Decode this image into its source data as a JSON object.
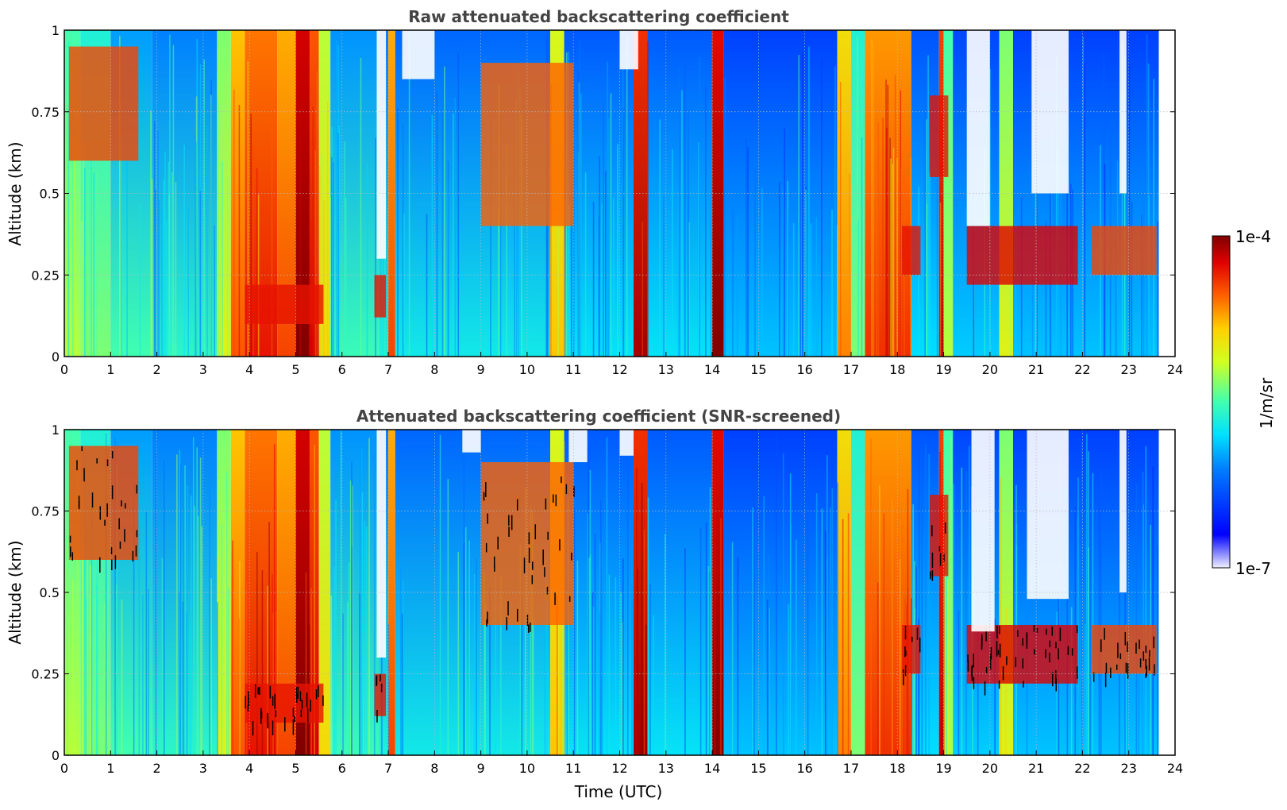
{
  "chart_data": [
    {
      "type": "heatmap",
      "title": "Raw attenuated backscattering coefficient",
      "xlabel": "",
      "ylabel": "Altitude (km)",
      "xlim": [
        0,
        24
      ],
      "ylim": [
        0,
        1
      ],
      "x_ticks": [
        "0",
        "1",
        "2",
        "3",
        "4",
        "5",
        "6",
        "7",
        "8",
        "9",
        "10",
        "11",
        "12",
        "13",
        "14",
        "15",
        "16",
        "17",
        "18",
        "19",
        "20",
        "21",
        "22",
        "23",
        "24"
      ],
      "y_ticks": [
        "0",
        "0.25",
        "0.5",
        "0.75",
        "1"
      ],
      "data_end_x": 23.65,
      "grid": true,
      "columns": [
        {
          "x0": 0.0,
          "x1": 0.35,
          "level": 0.55
        },
        {
          "x0": 0.35,
          "x1": 1.0,
          "level": 0.5
        },
        {
          "x0": 1.0,
          "x1": 1.9,
          "level": 0.45
        },
        {
          "x0": 1.9,
          "x1": 3.3,
          "level": 0.42
        },
        {
          "x0": 3.3,
          "x1": 3.6,
          "level": 0.6
        },
        {
          "x0": 3.6,
          "x1": 3.9,
          "level": 0.78
        },
        {
          "x0": 3.9,
          "x1": 4.6,
          "level": 0.85
        },
        {
          "x0": 4.6,
          "x1": 5.0,
          "level": 0.8
        },
        {
          "x0": 5.0,
          "x1": 5.3,
          "level": 0.98
        },
        {
          "x0": 5.3,
          "x1": 5.5,
          "level": 0.88
        },
        {
          "x0": 5.5,
          "x1": 5.75,
          "level": 0.65
        },
        {
          "x0": 5.75,
          "x1": 6.8,
          "level": 0.44
        },
        {
          "x0": 6.8,
          "x1": 7.0,
          "level": 0.4
        },
        {
          "x0": 7.0,
          "x1": 7.15,
          "level": 0.8
        },
        {
          "x0": 7.15,
          "x1": 10.5,
          "level": 0.38
        },
        {
          "x0": 10.5,
          "x1": 10.8,
          "level": 0.68
        },
        {
          "x0": 10.8,
          "x1": 12.3,
          "level": 0.36
        },
        {
          "x0": 12.3,
          "x1": 12.6,
          "level": 0.92
        },
        {
          "x0": 12.6,
          "x1": 14.0,
          "level": 0.36
        },
        {
          "x0": 14.0,
          "x1": 14.25,
          "level": 0.96
        },
        {
          "x0": 14.25,
          "x1": 16.7,
          "level": 0.32
        },
        {
          "x0": 16.7,
          "x1": 17.0,
          "level": 0.74
        },
        {
          "x0": 17.0,
          "x1": 17.3,
          "level": 0.5
        },
        {
          "x0": 17.3,
          "x1": 18.3,
          "level": 0.82
        },
        {
          "x0": 18.3,
          "x1": 18.9,
          "level": 0.35
        },
        {
          "x0": 18.9,
          "x1": 19.0,
          "level": 0.9
        },
        {
          "x0": 19.0,
          "x1": 19.2,
          "level": 0.55
        },
        {
          "x0": 19.2,
          "x1": 20.2,
          "level": 0.33
        },
        {
          "x0": 20.2,
          "x1": 20.5,
          "level": 0.6
        },
        {
          "x0": 20.5,
          "x1": 23.65,
          "level": 0.32
        }
      ],
      "layers": [
        {
          "x0": 3.9,
          "x1": 5.6,
          "y0": 0.1,
          "y1": 0.22,
          "level": 0.9
        },
        {
          "x0": 6.7,
          "x1": 6.95,
          "y0": 0.12,
          "y1": 0.25,
          "level": 0.9
        },
        {
          "x0": 19.5,
          "x1": 21.9,
          "y0": 0.22,
          "y1": 0.4,
          "level": 0.92
        },
        {
          "x0": 22.2,
          "x1": 23.6,
          "y0": 0.25,
          "y1": 0.4,
          "level": 0.85
        },
        {
          "x0": 18.1,
          "x1": 18.5,
          "y0": 0.25,
          "y1": 0.4,
          "level": 0.9
        },
        {
          "x0": 0.1,
          "x1": 1.6,
          "y0": 0.6,
          "y1": 0.95,
          "level": 0.85
        },
        {
          "x0": 9.0,
          "x1": 11.0,
          "y0": 0.4,
          "y1": 0.9,
          "level": 0.82
        },
        {
          "x0": 18.7,
          "x1": 19.1,
          "y0": 0.55,
          "y1": 0.8,
          "level": 0.9
        }
      ]
    },
    {
      "type": "heatmap",
      "title": "Attenuated backscattering coefficient (SNR-screened)",
      "xlabel": "Time (UTC)",
      "ylabel": "Altitude (km)",
      "xlim": [
        0,
        24
      ],
      "ylim": [
        0,
        1
      ],
      "x_ticks": [
        "0",
        "1",
        "2",
        "3",
        "4",
        "5",
        "6",
        "7",
        "8",
        "9",
        "10",
        "11",
        "12",
        "13",
        "14",
        "15",
        "16",
        "17",
        "18",
        "19",
        "20",
        "21",
        "22",
        "23",
        "24"
      ],
      "y_ticks": [
        "0",
        "0.25",
        "0.5",
        "0.75",
        "1"
      ],
      "data_end_x": 23.65,
      "grid": true
    }
  ],
  "colorbar": {
    "label": "1/m/sr",
    "max_label": "1e-4",
    "min_label": "1e-7",
    "colormap": "jet"
  }
}
